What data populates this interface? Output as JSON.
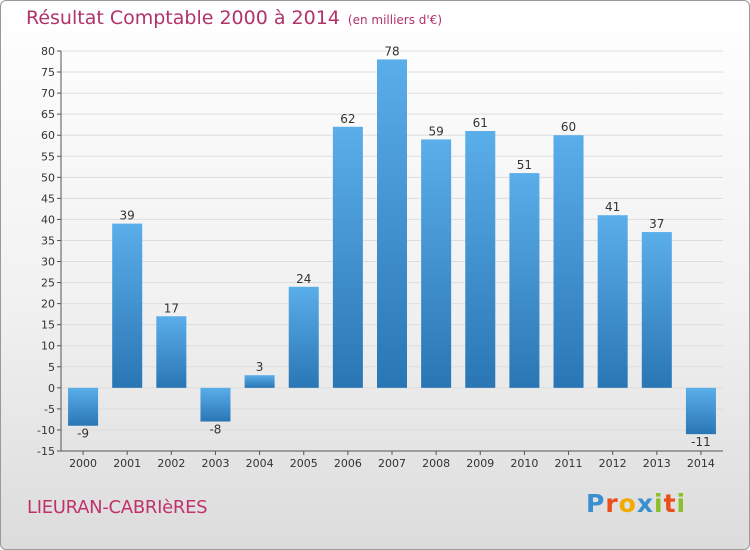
{
  "title": "Résultat Comptable 2000 à 2014",
  "unit": "(en milliers d'€)",
  "commune": "LIEURAN-CABRIèRES",
  "logo": {
    "letters": [
      "P",
      "r",
      "o",
      "x",
      "i",
      "t",
      "i"
    ],
    "colors": [
      "#3a8fd0",
      "#e94e1b",
      "#f2a900",
      "#3a8fd0",
      "#8bbf2a",
      "#e94e1b",
      "#8bbf2a"
    ]
  },
  "colors": {
    "bar_top": "#5aaeea",
    "bar_bottom": "#2a76b4",
    "axis": "#555555",
    "grid": "#dddddd"
  },
  "chart_data": {
    "type": "bar",
    "title": "Résultat Comptable 2000 à 2014",
    "ylabel": "(en milliers d'€)",
    "categories": [
      "2000",
      "2001",
      "2002",
      "2003",
      "2004",
      "2005",
      "2006",
      "2007",
      "2008",
      "2009",
      "2010",
      "2011",
      "2012",
      "2013",
      "2014"
    ],
    "values": [
      -9,
      39,
      17,
      -8,
      3,
      24,
      62,
      78,
      59,
      61,
      51,
      60,
      41,
      37,
      -11
    ],
    "ylim": [
      -15,
      80
    ],
    "yticks": [
      -15,
      -10,
      -5,
      0,
      5,
      10,
      15,
      20,
      25,
      30,
      35,
      40,
      45,
      50,
      55,
      60,
      65,
      70,
      75,
      80
    ],
    "grid": true
  }
}
